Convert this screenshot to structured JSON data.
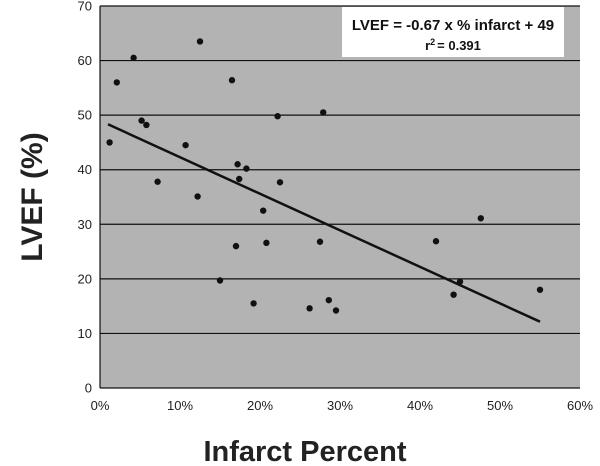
{
  "chart_data": {
    "type": "scatter",
    "xlabel": "Infarct Percent",
    "ylabel": "LVEF (%)",
    "xlim": [
      0,
      0.6
    ],
    "ylim": [
      0,
      70
    ],
    "x_ticks": [
      0,
      0.1,
      0.2,
      0.3,
      0.4,
      0.5,
      0.6
    ],
    "x_tick_labels": [
      "0%",
      "10%",
      "20%",
      "30%",
      "40%",
      "50%",
      "60%"
    ],
    "y_ticks": [
      0,
      10,
      20,
      30,
      40,
      50,
      60,
      70
    ],
    "y_tick_labels": [
      "0",
      "10",
      "20",
      "30",
      "40",
      "50",
      "60",
      "70"
    ],
    "grid": "horizontal",
    "plot_background": "#b3b3b3",
    "point_color": "#111111",
    "points": [
      {
        "x": 0.012,
        "y": 45.0
      },
      {
        "x": 0.021,
        "y": 56.0
      },
      {
        "x": 0.042,
        "y": 60.5
      },
      {
        "x": 0.052,
        "y": 49.0
      },
      {
        "x": 0.058,
        "y": 48.2
      },
      {
        "x": 0.072,
        "y": 37.8
      },
      {
        "x": 0.107,
        "y": 44.5
      },
      {
        "x": 0.122,
        "y": 35.1
      },
      {
        "x": 0.125,
        "y": 63.5
      },
      {
        "x": 0.15,
        "y": 19.7
      },
      {
        "x": 0.165,
        "y": 56.4
      },
      {
        "x": 0.17,
        "y": 26.0
      },
      {
        "x": 0.172,
        "y": 41.0
      },
      {
        "x": 0.174,
        "y": 38.3
      },
      {
        "x": 0.183,
        "y": 40.2
      },
      {
        "x": 0.192,
        "y": 15.5
      },
      {
        "x": 0.204,
        "y": 32.5
      },
      {
        "x": 0.208,
        "y": 26.6
      },
      {
        "x": 0.222,
        "y": 49.8
      },
      {
        "x": 0.225,
        "y": 37.7
      },
      {
        "x": 0.262,
        "y": 14.6
      },
      {
        "x": 0.275,
        "y": 26.8
      },
      {
        "x": 0.279,
        "y": 50.5
      },
      {
        "x": 0.286,
        "y": 16.1
      },
      {
        "x": 0.295,
        "y": 14.2
      },
      {
        "x": 0.42,
        "y": 26.9
      },
      {
        "x": 0.442,
        "y": 17.1
      },
      {
        "x": 0.45,
        "y": 19.5
      },
      {
        "x": 0.476,
        "y": 31.1
      },
      {
        "x": 0.55,
        "y": 18.0
      }
    ],
    "regression": {
      "slope_per_percent": -0.67,
      "intercept": 49,
      "x_range": [
        0.01,
        0.55
      ],
      "line_color": "#111111"
    },
    "annotation": {
      "equation": "LVEF = -0.67 x % infarct + 49",
      "r2_prefix": "r",
      "r2_sup": "2",
      "r2_value": "= 0.391"
    }
  }
}
